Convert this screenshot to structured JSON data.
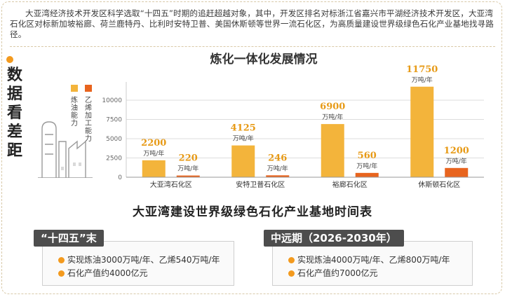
{
  "intro": "大亚湾经济技术开发区科学选取“十四五”时期的追赶超越对象，其中，开发区排名对标浙江省嘉兴市平湖经济技术开发区，大亚湾石化区对标新加坡裕廊、荷兰鹿特丹、比利时安特卫普、美国休斯顿等世界一流石化区，为高质量建设世界级绿色石化产业基地找寻路径。",
  "side_title": [
    "数",
    "据",
    "看",
    "差",
    "距"
  ],
  "colors": {
    "refining": "#f3b43b",
    "ethylene": "#e8641e",
    "accent": "#f39a1e",
    "tab": "#4d4d4d"
  },
  "chart_data": {
    "type": "bar",
    "title": "炼化一体化发展情况",
    "categories": [
      "大亚湾石化区",
      "安特卫普石化区",
      "裕廊石化区",
      "休斯顿石化区"
    ],
    "series": [
      {
        "name": "炼油能力",
        "values": [
          2200,
          4125,
          6900,
          11750
        ],
        "labels": [
          "2200",
          "4125",
          "6900",
          "11750"
        ]
      },
      {
        "name": "乙烯加工能力",
        "values": [
          220,
          246,
          560,
          1200
        ],
        "labels": [
          "220",
          "246",
          "560",
          "1200"
        ]
      }
    ],
    "unit": "万吨/年",
    "yticks": [
      "0",
      "2500",
      "5000",
      "7500",
      "10000"
    ],
    "ylim": [
      0,
      12000
    ],
    "grid": true,
    "legend": "left"
  },
  "timeline": {
    "title": "大亚湾建设世界级绿色石化产业基地时间表",
    "cards": [
      {
        "tab": "“十四五”末",
        "items": [
          "实现炼油3000万吨/年、乙烯540万吨/年",
          "石化产值约4000亿元"
        ]
      },
      {
        "tab": "中远期（2026-2030年）",
        "items": [
          "实现炼油4000万吨/年、乙烯800万吨/年",
          "石化产值约7000亿元"
        ]
      }
    ]
  }
}
